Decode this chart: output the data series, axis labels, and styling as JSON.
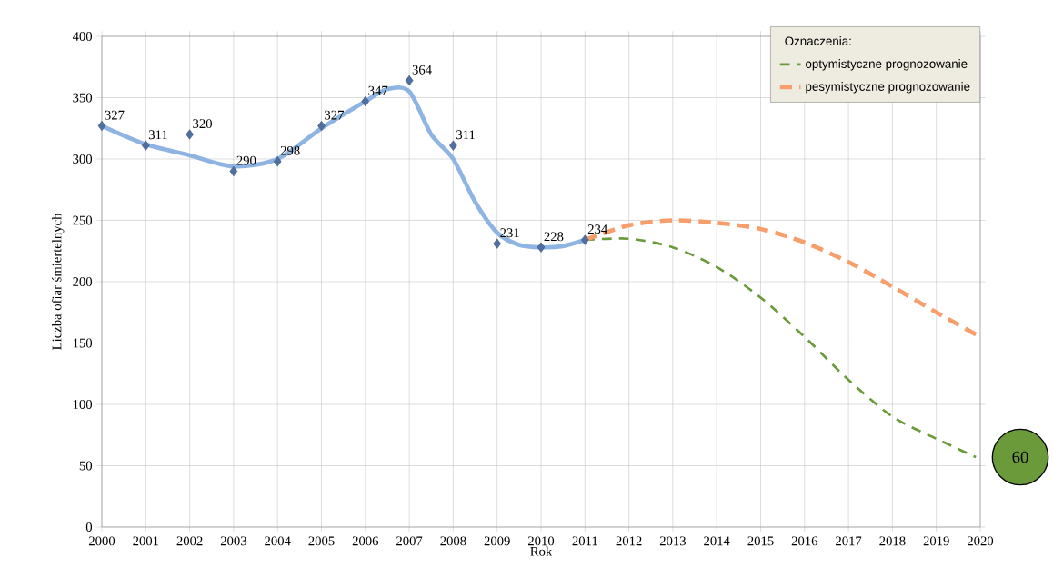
{
  "chart_data": {
    "type": "line",
    "xlabel": "Rok",
    "ylabel": "Liczba ofiar śmiertelnych",
    "legend_title": "Oznaczenia:",
    "xlim": [
      2000,
      2020
    ],
    "ylim": [
      0,
      400
    ],
    "xticks": [
      2000,
      2001,
      2002,
      2003,
      2004,
      2005,
      2006,
      2007,
      2008,
      2009,
      2010,
      2011,
      2012,
      2013,
      2014,
      2015,
      2016,
      2017,
      2018,
      2019,
      2020
    ],
    "yticks": [
      0,
      50,
      100,
      150,
      200,
      250,
      300,
      350,
      400
    ],
    "grid": true,
    "legend": "top right",
    "series": [
      {
        "color": "#8eb4e3",
        "marker": "none",
        "line_style": "solid",
        "x": [
          2000,
          2001,
          2002,
          2003,
          2004,
          2005,
          2006,
          2006.5,
          2007,
          2007.5,
          2008,
          2008.5,
          2009,
          2009.5,
          2010,
          2010.5,
          2011
        ],
        "values": [
          327,
          312,
          303,
          294,
          300,
          325,
          347,
          357,
          355,
          320,
          300,
          265,
          240,
          230,
          228,
          229,
          234
        ]
      },
      {
        "type": "scatter",
        "color": "#4f6fa0",
        "marker": "diamond",
        "x": [
          2000,
          2001,
          2002,
          2003,
          2004,
          2005,
          2006,
          2007,
          2008,
          2009,
          2010,
          2011
        ],
        "values": [
          327,
          311,
          320,
          290,
          298,
          327,
          347,
          364,
          311,
          231,
          228,
          234
        ],
        "value_labels": [
          "327",
          "311",
          "320",
          "290",
          "298",
          "327",
          "347",
          "364",
          "311",
          "231",
          "228",
          "234"
        ]
      },
      {
        "name": "optymistyczne prognozowanie",
        "color": "#6a9a3a",
        "marker": "none",
        "line_style": "dashed",
        "x": [
          2011,
          2012,
          2013,
          2014,
          2015,
          2016,
          2017,
          2018,
          2019,
          2019.9
        ],
        "values": [
          234,
          235,
          228,
          212,
          187,
          155,
          120,
          90,
          72,
          57
        ]
      },
      {
        "name": "pesymistyczne prognozowanie",
        "color": "#f79e6b",
        "marker": "none",
        "line_style": "dashed",
        "x": [
          2011,
          2012,
          2013,
          2014,
          2015,
          2016,
          2017,
          2018,
          2019,
          2020
        ],
        "values": [
          234,
          246,
          250,
          248,
          243,
          232,
          216,
          196,
          175,
          155
        ]
      }
    ],
    "annotations": [
      "60"
    ]
  }
}
